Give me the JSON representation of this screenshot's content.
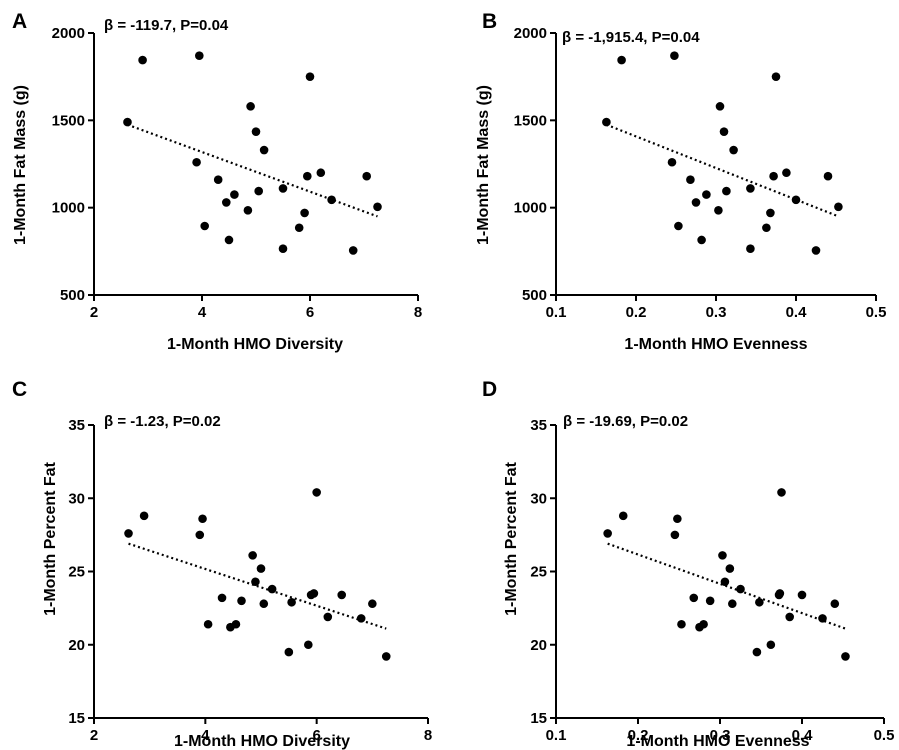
{
  "chart_data": [
    {
      "panel": "A",
      "type": "scatter",
      "annotation": "β = -119.7, P=0.04",
      "xlabel": "1-Month HMO Diversity",
      "ylabel": "1-Month Fat Mass (g)",
      "xlim": [
        2,
        8
      ],
      "ylim": [
        500,
        2000
      ],
      "xticks": [
        2,
        4,
        6,
        8
      ],
      "xtick_labels": [
        "2",
        "4",
        "6",
        "8"
      ],
      "yticks": [
        500,
        1000,
        1500,
        2000
      ],
      "ytick_labels": [
        "500",
        "1000",
        "1500",
        "2000"
      ],
      "trendline": [
        [
          2.62,
          1475
        ],
        [
          7.25,
          950
        ]
      ],
      "x": [
        2.62,
        2.9,
        3.9,
        3.95,
        4.05,
        4.3,
        4.45,
        4.5,
        4.6,
        4.85,
        4.9,
        5.0,
        5.05,
        5.15,
        5.5,
        5.5,
        5.8,
        5.9,
        5.95,
        6.0,
        6.2,
        6.4,
        6.8,
        7.05,
        7.25
      ],
      "y": [
        1490,
        1845,
        1260,
        1870,
        895,
        1160,
        1030,
        815,
        1075,
        985,
        1580,
        1435,
        1095,
        1330,
        765,
        1110,
        885,
        970,
        1180,
        1750,
        1200,
        1045,
        755,
        1180,
        1005
      ]
    },
    {
      "panel": "B",
      "type": "scatter",
      "annotation": "β = -1,915.4, P=0.04",
      "xlabel": "1-Month HMO Evenness",
      "ylabel": "1-Month Fat Mass (g)",
      "xlim": [
        0.1,
        0.5
      ],
      "ylim": [
        500,
        2000
      ],
      "xticks": [
        0.1,
        0.2,
        0.3,
        0.4,
        0.5
      ],
      "xtick_labels": [
        "0.1",
        "0.2",
        "0.3",
        "0.4",
        "0.5"
      ],
      "yticks": [
        500,
        1000,
        1500,
        2000
      ],
      "ytick_labels": [
        "500",
        "1000",
        "1500",
        "2000"
      ],
      "trendline": [
        [
          0.163,
          1475
        ],
        [
          0.453,
          950
        ]
      ],
      "x": [
        0.163,
        0.182,
        0.245,
        0.248,
        0.253,
        0.268,
        0.275,
        0.282,
        0.288,
        0.303,
        0.305,
        0.31,
        0.313,
        0.322,
        0.343,
        0.343,
        0.363,
        0.368,
        0.372,
        0.375,
        0.388,
        0.4,
        0.425,
        0.44,
        0.453
      ],
      "y": [
        1490,
        1845,
        1260,
        1870,
        895,
        1160,
        1030,
        815,
        1075,
        985,
        1580,
        1435,
        1095,
        1330,
        765,
        1110,
        885,
        970,
        1180,
        1750,
        1200,
        1045,
        755,
        1180,
        1005
      ]
    },
    {
      "panel": "C",
      "type": "scatter",
      "annotation": "β = -1.23, P=0.02",
      "xlabel": "1-Month HMO Diversity",
      "ylabel": "1-Month Percent Fat",
      "xlim": [
        2,
        8
      ],
      "ylim": [
        15,
        35
      ],
      "xticks": [
        2,
        4,
        6,
        8
      ],
      "xtick_labels": [
        "2",
        "4",
        "6",
        "8"
      ],
      "yticks": [
        15,
        20,
        25,
        30,
        35
      ],
      "ytick_labels": [
        "15",
        "20",
        "25",
        "30",
        "35"
      ],
      "trendline": [
        [
          2.62,
          26.9
        ],
        [
          7.25,
          21.1
        ]
      ],
      "x": [
        2.62,
        2.9,
        3.9,
        3.95,
        4.05,
        4.3,
        4.45,
        4.55,
        4.65,
        4.85,
        4.9,
        5.0,
        5.05,
        5.2,
        5.5,
        5.55,
        5.85,
        5.9,
        5.95,
        6.0,
        6.2,
        6.45,
        6.8,
        7.0,
        7.25
      ],
      "y": [
        27.6,
        28.8,
        27.5,
        28.6,
        21.4,
        23.2,
        21.2,
        21.4,
        23.0,
        26.1,
        24.3,
        25.2,
        22.8,
        23.8,
        19.5,
        22.9,
        20.0,
        23.4,
        23.5,
        30.4,
        21.9,
        23.4,
        21.8,
        22.8,
        19.2
      ]
    },
    {
      "panel": "D",
      "type": "scatter",
      "annotation": "β = -19.69, P=0.02",
      "xlabel": "1-Month HMO Evenness",
      "ylabel": "1-Month Percent Fat",
      "xlim": [
        0.1,
        0.5
      ],
      "ylim": [
        15,
        35
      ],
      "xticks": [
        0.1,
        0.2,
        0.3,
        0.4,
        0.5
      ],
      "xtick_labels": [
        "0.1",
        "0.2",
        "0.3",
        "0.4",
        "0.5"
      ],
      "yticks": [
        15,
        20,
        25,
        30,
        35
      ],
      "ytick_labels": [
        "15",
        "20",
        "25",
        "30",
        "35"
      ],
      "trendline": [
        [
          0.163,
          26.9
        ],
        [
          0.453,
          21.1
        ]
      ],
      "x": [
        0.163,
        0.182,
        0.245,
        0.248,
        0.253,
        0.268,
        0.275,
        0.28,
        0.288,
        0.303,
        0.306,
        0.312,
        0.315,
        0.325,
        0.345,
        0.348,
        0.362,
        0.372,
        0.373,
        0.375,
        0.385,
        0.4,
        0.425,
        0.44,
        0.453
      ],
      "y": [
        27.6,
        28.8,
        27.5,
        28.6,
        21.4,
        23.2,
        21.2,
        21.4,
        23.0,
        26.1,
        24.3,
        25.2,
        22.8,
        23.8,
        19.5,
        22.9,
        20.0,
        23.4,
        23.5,
        30.4,
        21.9,
        23.4,
        21.8,
        22.8,
        19.2
      ]
    }
  ]
}
